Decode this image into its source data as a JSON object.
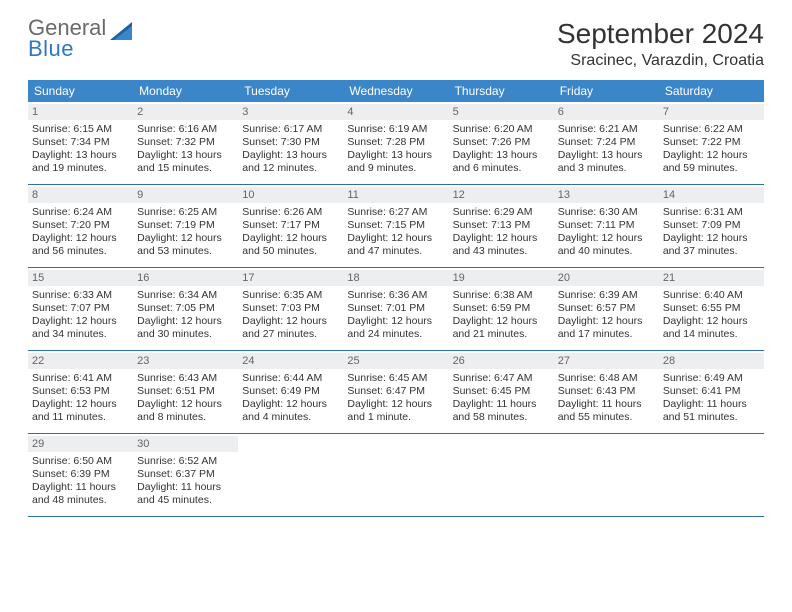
{
  "logo": {
    "word1": "General",
    "word2": "Blue"
  },
  "title": "September 2024",
  "location": "Sracinec, Varazdin, Croatia",
  "colors": {
    "header_bg": "#3b86c8",
    "header_text": "#ffffff",
    "row_border": "#2f6fa8",
    "daynum_bg": "#eceeef",
    "daynum_text": "#666666",
    "body_text": "#333333",
    "logo_gray": "#6a6a6a",
    "logo_blue": "#2f78c3"
  },
  "weekdays": [
    "Sunday",
    "Monday",
    "Tuesday",
    "Wednesday",
    "Thursday",
    "Friday",
    "Saturday"
  ],
  "weeks": [
    [
      {
        "n": "1",
        "sr": "Sunrise: 6:15 AM",
        "ss": "Sunset: 7:34 PM",
        "d1": "Daylight: 13 hours",
        "d2": "and 19 minutes."
      },
      {
        "n": "2",
        "sr": "Sunrise: 6:16 AM",
        "ss": "Sunset: 7:32 PM",
        "d1": "Daylight: 13 hours",
        "d2": "and 15 minutes."
      },
      {
        "n": "3",
        "sr": "Sunrise: 6:17 AM",
        "ss": "Sunset: 7:30 PM",
        "d1": "Daylight: 13 hours",
        "d2": "and 12 minutes."
      },
      {
        "n": "4",
        "sr": "Sunrise: 6:19 AM",
        "ss": "Sunset: 7:28 PM",
        "d1": "Daylight: 13 hours",
        "d2": "and 9 minutes."
      },
      {
        "n": "5",
        "sr": "Sunrise: 6:20 AM",
        "ss": "Sunset: 7:26 PM",
        "d1": "Daylight: 13 hours",
        "d2": "and 6 minutes."
      },
      {
        "n": "6",
        "sr": "Sunrise: 6:21 AM",
        "ss": "Sunset: 7:24 PM",
        "d1": "Daylight: 13 hours",
        "d2": "and 3 minutes."
      },
      {
        "n": "7",
        "sr": "Sunrise: 6:22 AM",
        "ss": "Sunset: 7:22 PM",
        "d1": "Daylight: 12 hours",
        "d2": "and 59 minutes."
      }
    ],
    [
      {
        "n": "8",
        "sr": "Sunrise: 6:24 AM",
        "ss": "Sunset: 7:20 PM",
        "d1": "Daylight: 12 hours",
        "d2": "and 56 minutes."
      },
      {
        "n": "9",
        "sr": "Sunrise: 6:25 AM",
        "ss": "Sunset: 7:19 PM",
        "d1": "Daylight: 12 hours",
        "d2": "and 53 minutes."
      },
      {
        "n": "10",
        "sr": "Sunrise: 6:26 AM",
        "ss": "Sunset: 7:17 PM",
        "d1": "Daylight: 12 hours",
        "d2": "and 50 minutes."
      },
      {
        "n": "11",
        "sr": "Sunrise: 6:27 AM",
        "ss": "Sunset: 7:15 PM",
        "d1": "Daylight: 12 hours",
        "d2": "and 47 minutes."
      },
      {
        "n": "12",
        "sr": "Sunrise: 6:29 AM",
        "ss": "Sunset: 7:13 PM",
        "d1": "Daylight: 12 hours",
        "d2": "and 43 minutes."
      },
      {
        "n": "13",
        "sr": "Sunrise: 6:30 AM",
        "ss": "Sunset: 7:11 PM",
        "d1": "Daylight: 12 hours",
        "d2": "and 40 minutes."
      },
      {
        "n": "14",
        "sr": "Sunrise: 6:31 AM",
        "ss": "Sunset: 7:09 PM",
        "d1": "Daylight: 12 hours",
        "d2": "and 37 minutes."
      }
    ],
    [
      {
        "n": "15",
        "sr": "Sunrise: 6:33 AM",
        "ss": "Sunset: 7:07 PM",
        "d1": "Daylight: 12 hours",
        "d2": "and 34 minutes."
      },
      {
        "n": "16",
        "sr": "Sunrise: 6:34 AM",
        "ss": "Sunset: 7:05 PM",
        "d1": "Daylight: 12 hours",
        "d2": "and 30 minutes."
      },
      {
        "n": "17",
        "sr": "Sunrise: 6:35 AM",
        "ss": "Sunset: 7:03 PM",
        "d1": "Daylight: 12 hours",
        "d2": "and 27 minutes."
      },
      {
        "n": "18",
        "sr": "Sunrise: 6:36 AM",
        "ss": "Sunset: 7:01 PM",
        "d1": "Daylight: 12 hours",
        "d2": "and 24 minutes."
      },
      {
        "n": "19",
        "sr": "Sunrise: 6:38 AM",
        "ss": "Sunset: 6:59 PM",
        "d1": "Daylight: 12 hours",
        "d2": "and 21 minutes."
      },
      {
        "n": "20",
        "sr": "Sunrise: 6:39 AM",
        "ss": "Sunset: 6:57 PM",
        "d1": "Daylight: 12 hours",
        "d2": "and 17 minutes."
      },
      {
        "n": "21",
        "sr": "Sunrise: 6:40 AM",
        "ss": "Sunset: 6:55 PM",
        "d1": "Daylight: 12 hours",
        "d2": "and 14 minutes."
      }
    ],
    [
      {
        "n": "22",
        "sr": "Sunrise: 6:41 AM",
        "ss": "Sunset: 6:53 PM",
        "d1": "Daylight: 12 hours",
        "d2": "and 11 minutes."
      },
      {
        "n": "23",
        "sr": "Sunrise: 6:43 AM",
        "ss": "Sunset: 6:51 PM",
        "d1": "Daylight: 12 hours",
        "d2": "and 8 minutes."
      },
      {
        "n": "24",
        "sr": "Sunrise: 6:44 AM",
        "ss": "Sunset: 6:49 PM",
        "d1": "Daylight: 12 hours",
        "d2": "and 4 minutes."
      },
      {
        "n": "25",
        "sr": "Sunrise: 6:45 AM",
        "ss": "Sunset: 6:47 PM",
        "d1": "Daylight: 12 hours",
        "d2": "and 1 minute."
      },
      {
        "n": "26",
        "sr": "Sunrise: 6:47 AM",
        "ss": "Sunset: 6:45 PM",
        "d1": "Daylight: 11 hours",
        "d2": "and 58 minutes."
      },
      {
        "n": "27",
        "sr": "Sunrise: 6:48 AM",
        "ss": "Sunset: 6:43 PM",
        "d1": "Daylight: 11 hours",
        "d2": "and 55 minutes."
      },
      {
        "n": "28",
        "sr": "Sunrise: 6:49 AM",
        "ss": "Sunset: 6:41 PM",
        "d1": "Daylight: 11 hours",
        "d2": "and 51 minutes."
      }
    ],
    [
      {
        "n": "29",
        "sr": "Sunrise: 6:50 AM",
        "ss": "Sunset: 6:39 PM",
        "d1": "Daylight: 11 hours",
        "d2": "and 48 minutes."
      },
      {
        "n": "30",
        "sr": "Sunrise: 6:52 AM",
        "ss": "Sunset: 6:37 PM",
        "d1": "Daylight: 11 hours",
        "d2": "and 45 minutes."
      },
      null,
      null,
      null,
      null,
      null
    ]
  ]
}
